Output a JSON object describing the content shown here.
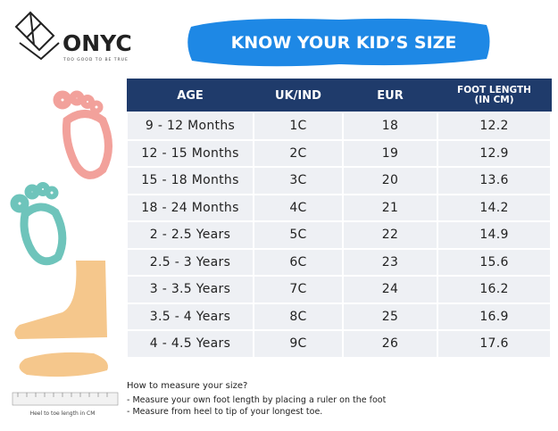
{
  "brand": {
    "name": "ONYC",
    "tagline": "TOO GOOD TO BE TRUE"
  },
  "title": "KNOW YOUR KID’S SIZE",
  "table": {
    "headers": [
      "AGE",
      "UK/IND",
      "EUR",
      "FOOT LENGTH (IN CM)"
    ],
    "rows": [
      [
        "9 - 12 Months",
        "1C",
        "18",
        "12.2"
      ],
      [
        "12 - 15 Months",
        "2C",
        "19",
        "12.9"
      ],
      [
        "15 - 18 Months",
        "3C",
        "20",
        "13.6"
      ],
      [
        "18 - 24 Months",
        "4C",
        "21",
        "14.2"
      ],
      [
        "2 - 2.5 Years",
        "5C",
        "22",
        "14.9"
      ],
      [
        "2.5 - 3 Years",
        "6C",
        "23",
        "15.6"
      ],
      [
        "3 - 3.5 Years",
        "7C",
        "24",
        "16.2"
      ],
      [
        "3.5 - 4 Years",
        "8C",
        "25",
        "16.9"
      ],
      [
        "4 - 4.5 Years",
        "9C",
        "26",
        "17.6"
      ]
    ]
  },
  "notes": {
    "heading": "How to measure your size?",
    "items": [
      "- Measure your own foot length by placing a ruler on the foot",
      "- Measure from heel to tip of your longest toe."
    ]
  },
  "ruler_caption": "Heel to toe length in CM"
}
